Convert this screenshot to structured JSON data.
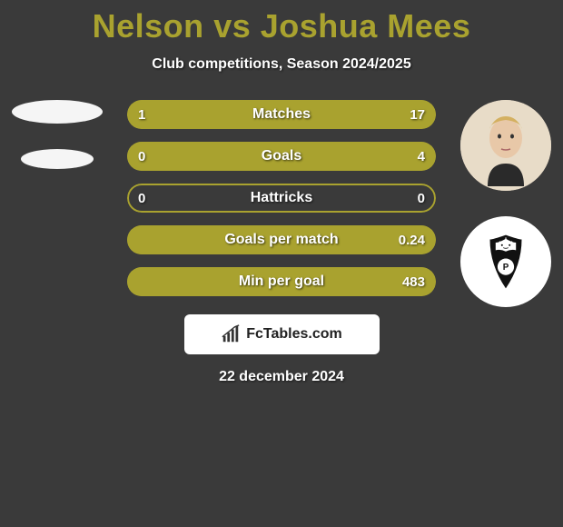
{
  "title": {
    "player1": "Nelson",
    "vs": "vs",
    "player2": "Joshua Mees",
    "color": "#a9a22f",
    "fontsize": 36
  },
  "subtitle": "Club competitions, Season 2024/2025",
  "colors": {
    "background": "#3a3a3a",
    "bar_fill": "#a9a22f",
    "bar_border": "#a9a22f",
    "bar_empty": "rgba(0,0,0,0)",
    "text": "#ffffff"
  },
  "bars": [
    {
      "label": "Matches",
      "left": "1",
      "right": "17",
      "left_pct": 5.6,
      "right_pct": 94.4
    },
    {
      "label": "Goals",
      "left": "0",
      "right": "4",
      "left_pct": 0,
      "right_pct": 100
    },
    {
      "label": "Hattricks",
      "left": "0",
      "right": "0",
      "left_pct": 0,
      "right_pct": 0
    },
    {
      "label": "Goals per match",
      "left": "",
      "right": "0.24",
      "left_pct": 0,
      "right_pct": 100
    },
    {
      "label": "Min per goal",
      "left": "",
      "right": "483",
      "left_pct": 0,
      "right_pct": 100
    }
  ],
  "bar_style": {
    "height": 32,
    "border_radius": 16,
    "label_fontsize": 16,
    "value_fontsize": 15
  },
  "footer_logo_text": "FcTables.com",
  "date": "22 december 2024"
}
